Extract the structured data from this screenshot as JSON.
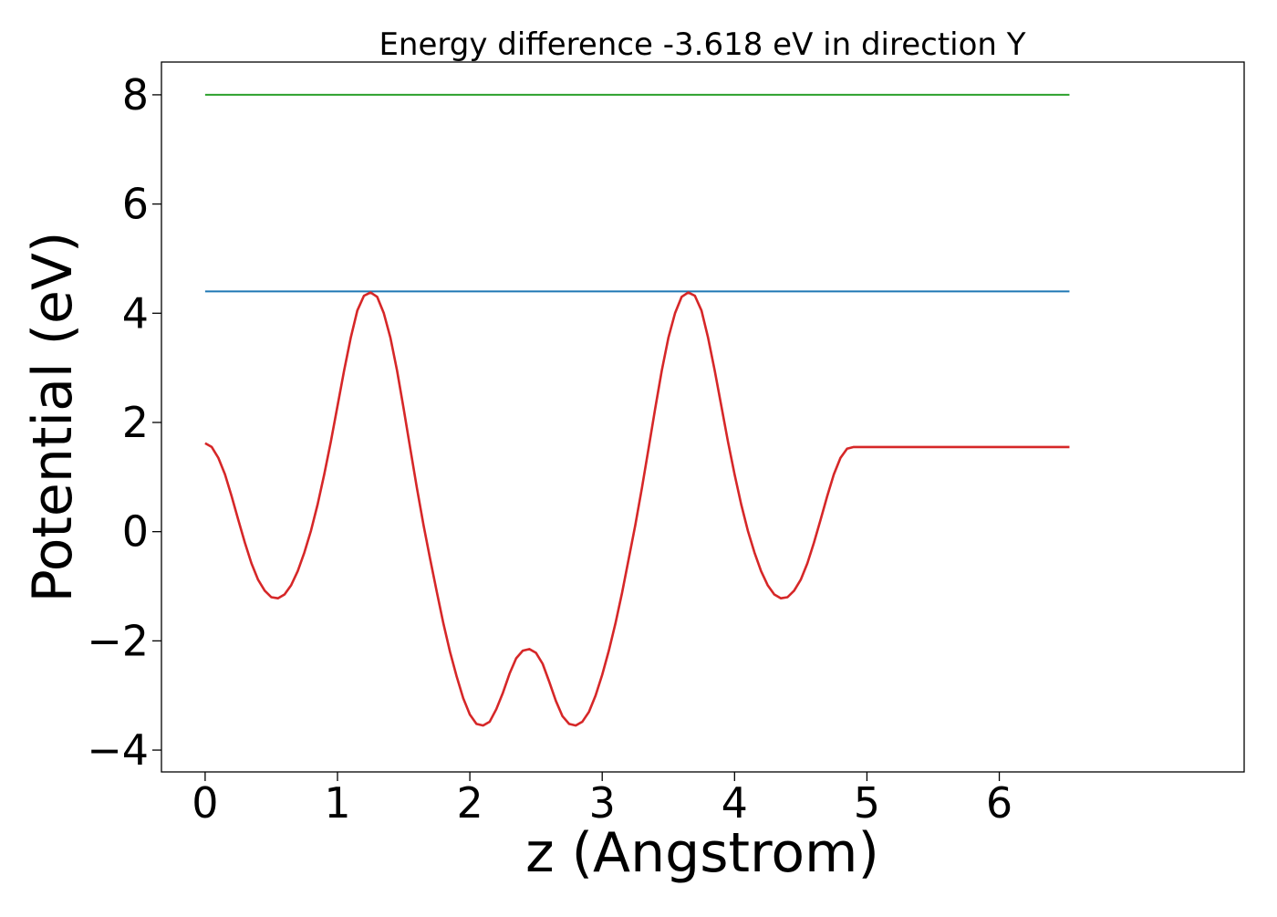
{
  "chart_data": {
    "type": "line",
    "title": "Energy difference -3.618 eV in direction Y",
    "xlabel": "z (Angstrom)",
    "ylabel": "Potential (eV)",
    "xlim": [
      -0.33,
      7.85
    ],
    "ylim": [
      -4.4,
      8.6
    ],
    "xticks": [
      0,
      1,
      2,
      3,
      4,
      5,
      6
    ],
    "yticks": [
      -4,
      -2,
      0,
      2,
      4,
      6,
      8
    ],
    "ytick_labels": [
      "−4",
      "−2",
      "0",
      "2",
      "4",
      "6",
      "8"
    ],
    "grid": false,
    "legend": "none",
    "series": [
      {
        "color": "#2ca02c",
        "x": [
          0,
          6.53
        ],
        "y": [
          8.0,
          8.0
        ]
      },
      {
        "color": "#1f77b4",
        "x": [
          0,
          6.53
        ],
        "y": [
          4.4,
          4.4
        ]
      },
      {
        "color": "#d62728",
        "x": [
          0.0,
          0.05,
          0.1,
          0.15,
          0.2,
          0.25,
          0.3,
          0.35,
          0.4,
          0.45,
          0.5,
          0.55,
          0.6,
          0.65,
          0.7,
          0.75,
          0.8,
          0.85,
          0.9,
          0.95,
          1.0,
          1.05,
          1.1,
          1.15,
          1.2,
          1.25,
          1.3,
          1.35,
          1.4,
          1.45,
          1.5,
          1.55,
          1.6,
          1.65,
          1.7,
          1.75,
          1.8,
          1.85,
          1.9,
          1.95,
          2.0,
          2.05,
          2.1,
          2.15,
          2.2,
          2.25,
          2.3,
          2.35,
          2.4,
          2.45,
          2.5,
          2.55,
          2.6,
          2.65,
          2.7,
          2.75,
          2.8,
          2.85,
          2.9,
          2.95,
          3.0,
          3.05,
          3.1,
          3.15,
          3.2,
          3.25,
          3.3,
          3.35,
          3.4,
          3.45,
          3.5,
          3.55,
          3.6,
          3.65,
          3.7,
          3.75,
          3.8,
          3.85,
          3.9,
          3.95,
          4.0,
          4.05,
          4.1,
          4.15,
          4.2,
          4.25,
          4.3,
          4.35,
          4.4,
          4.45,
          4.5,
          4.55,
          4.6,
          4.65,
          4.7,
          4.75,
          4.8,
          4.85,
          4.9,
          4.95,
          5.0,
          5.05,
          5.1,
          5.15,
          5.2,
          5.25,
          5.3,
          5.35,
          5.4,
          5.45,
          5.5,
          5.55,
          5.6,
          5.65,
          5.7,
          5.75,
          5.8,
          5.85,
          5.9,
          5.95,
          6.0,
          6.05,
          6.1,
          6.15,
          6.2,
          6.25,
          6.3,
          6.35,
          6.4,
          6.45,
          6.5,
          6.53
        ],
        "y": [
          1.62,
          1.55,
          1.35,
          1.05,
          0.65,
          0.22,
          -0.2,
          -0.58,
          -0.88,
          -1.08,
          -1.2,
          -1.22,
          -1.15,
          -0.98,
          -0.72,
          -0.38,
          0.02,
          0.5,
          1.05,
          1.65,
          2.3,
          2.95,
          3.55,
          4.05,
          4.32,
          4.38,
          4.3,
          4.0,
          3.55,
          2.95,
          2.25,
          1.52,
          0.8,
          0.12,
          -0.5,
          -1.1,
          -1.68,
          -2.2,
          -2.65,
          -3.05,
          -3.35,
          -3.52,
          -3.55,
          -3.48,
          -3.25,
          -2.95,
          -2.6,
          -2.32,
          -2.18,
          -2.15,
          -2.22,
          -2.42,
          -2.75,
          -3.1,
          -3.38,
          -3.52,
          -3.55,
          -3.48,
          -3.3,
          -3.0,
          -2.62,
          -2.18,
          -1.68,
          -1.12,
          -0.5,
          0.12,
          0.8,
          1.52,
          2.25,
          2.95,
          3.55,
          4.0,
          4.3,
          4.38,
          4.32,
          4.05,
          3.55,
          2.95,
          2.3,
          1.65,
          1.05,
          0.5,
          0.02,
          -0.38,
          -0.72,
          -0.98,
          -1.15,
          -1.22,
          -1.2,
          -1.08,
          -0.88,
          -0.58,
          -0.2,
          0.22,
          0.65,
          1.05,
          1.35,
          1.52,
          1.55,
          1.55,
          1.55,
          1.55,
          1.55,
          1.55,
          1.55,
          1.55,
          1.55,
          1.55,
          1.55,
          1.55,
          1.55,
          1.55,
          1.55,
          1.55,
          1.55,
          1.55,
          1.55,
          1.55,
          1.55,
          1.55,
          1.55,
          1.55,
          1.55,
          1.55,
          1.55,
          1.55,
          1.55,
          1.55,
          1.55,
          1.55,
          1.55,
          1.55
        ]
      }
    ]
  }
}
